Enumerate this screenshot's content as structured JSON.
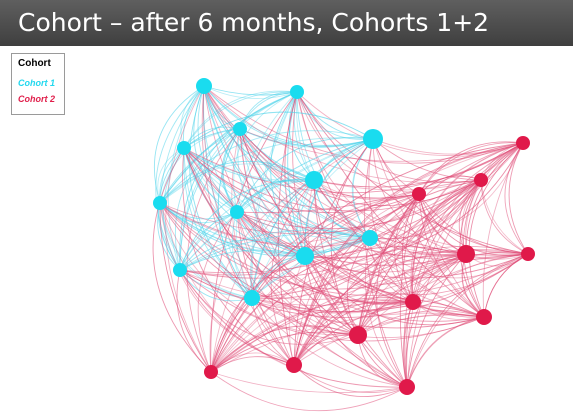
{
  "title": "Cohort – after 6 months, Cohorts 1+2",
  "legend": {
    "title": "Cohort",
    "items": [
      {
        "label": "Cohort 1",
        "color": "#22d8ee"
      },
      {
        "label": "Cohort 2",
        "color": "#e01f4b"
      }
    ]
  },
  "colors": {
    "cohort1_node": "#1adcef",
    "cohort2_node": "#e0194a",
    "cohort1_edge": "#4fd3ea",
    "cohort2_edge": "#e0507a",
    "title_bar": "#4b4b4b"
  }
}
